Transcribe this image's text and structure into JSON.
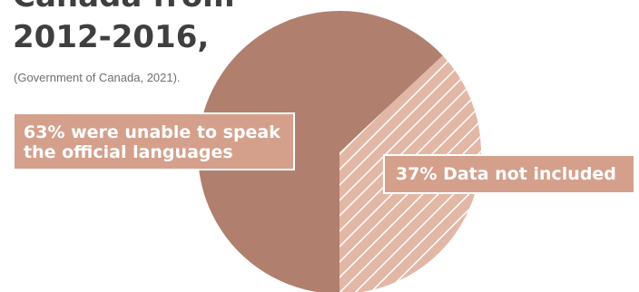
{
  "title": {
    "line1": "Canada from",
    "line2": "2012-2016,"
  },
  "source": "(Government of Canada, 2021).",
  "colors": {
    "major_slice": "#b07f6d",
    "minor_slice": "#e3b7a6",
    "minor_hatch": "#ffffff",
    "label_bg": "#d4a08c",
    "title": "#3f3f3f"
  },
  "chart_data": {
    "type": "pie",
    "slices": [
      {
        "label": "63% were unable to speak the official languages",
        "value": 63,
        "pattern": "solid"
      },
      {
        "label": "37% Data not included",
        "value": 37,
        "pattern": "hatched"
      }
    ]
  },
  "labels": {
    "major": "63% were unable to speak\nthe official languages",
    "minor": "37% Data not included"
  }
}
